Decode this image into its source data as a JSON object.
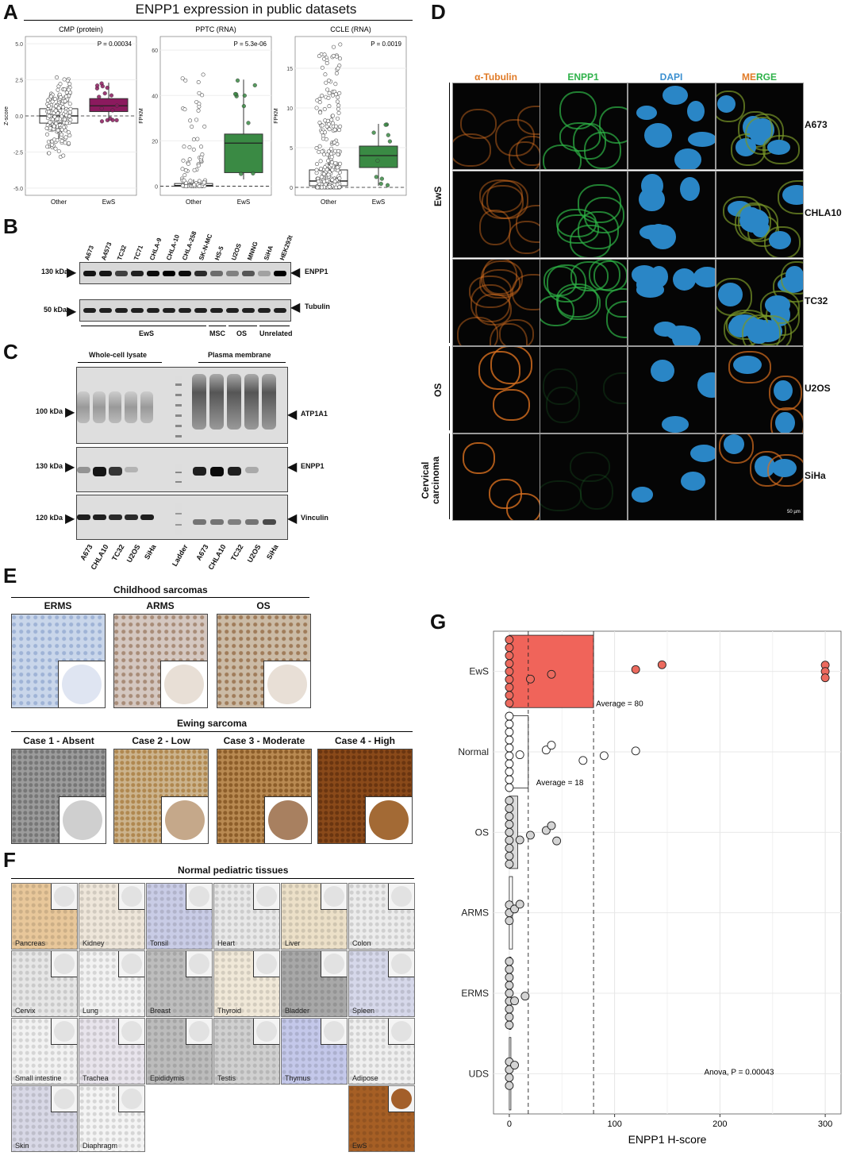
{
  "panels": {
    "A": "A",
    "B": "B",
    "C": "C",
    "D": "D",
    "E": "E",
    "F": "F",
    "G": "G"
  },
  "panelA": {
    "title": "ENPP1 expression in public datasets",
    "subplots": [
      {
        "title": "CMP (protein)",
        "pval": "P = 0.00034",
        "ylabel": "Z-score",
        "yticks": [
          "5.0",
          "2.5",
          "0.0",
          "-2.5",
          "-5.0"
        ],
        "xticks": [
          "Other",
          "EwS"
        ],
        "ew_color": "#8b1a5e"
      },
      {
        "title": "PPTC (RNA)",
        "pval": "P = 5.3e-06",
        "ylabel": "FPKM",
        "yticks": [
          "60",
          "40",
          "20",
          "0"
        ],
        "xticks": [
          "Other",
          "EwS"
        ],
        "ew_color": "#3a8a44"
      },
      {
        "title": "CCLE (RNA)",
        "pval": "P = 0.0019",
        "ylabel": "FPKM",
        "yticks": [
          "15",
          "10",
          "5",
          "0"
        ],
        "xticks": [
          "Other",
          "EwS"
        ],
        "ew_color": "#3a8a44"
      }
    ]
  },
  "panelB": {
    "lanes": [
      "A673",
      "A4573",
      "TC32",
      "TC71",
      "CHLA-9",
      "CHLA-10",
      "CHLA-258",
      "SK-N-MC",
      "HS-5",
      "U2OS",
      "MNNG",
      "SiHA",
      "HEK293t"
    ],
    "rows": [
      {
        "kda": "130 kDa",
        "label": "ENPP1"
      },
      {
        "kda": "50 kDa",
        "label": "Tubulin"
      }
    ],
    "groups": [
      "EwS",
      "MSC",
      "OS",
      "Unrelated"
    ]
  },
  "panelC": {
    "groups": [
      "Whole-cell lysate",
      "Plasma membrane"
    ],
    "rows": [
      {
        "kda": "100 kDa",
        "label": "ATP1A1"
      },
      {
        "kda": "130 kDa",
        "label": "ENPP1"
      },
      {
        "kda": "120 kDa",
        "label": "Vinculin"
      }
    ],
    "lanes": [
      "A673",
      "CHLA10",
      "TC32",
      "U2OS",
      "SiHa",
      "Ladder",
      "A673",
      "CHLA10",
      "TC32",
      "U2OS",
      "SiHa"
    ]
  },
  "panelD": {
    "channels": [
      "α-Tubulin",
      "ENPP1",
      "DAPI",
      "MERGE"
    ],
    "channel_colors": [
      "#e07a26",
      "#2fb24a",
      "#3a8fd0",
      "#e07a26"
    ],
    "merge_parts": [
      "M",
      "E",
      "R",
      "G",
      "E"
    ],
    "merge_colors": [
      "#e07a26",
      "#e07a26",
      "#2fb24a",
      "#2fb24a",
      "#2fb24a"
    ],
    "cells": [
      "A673",
      "CHLA10",
      "TC32",
      "U2OS",
      "SiHa"
    ],
    "groups": [
      "EwS",
      "OS",
      "Cervical carcinoma"
    ],
    "scale": "50 µm"
  },
  "panelE": {
    "header1": "Childhood sarcomas",
    "top": [
      "ERMS",
      "ARMS",
      "OS"
    ],
    "header2": "Ewing sarcoma",
    "bottom": [
      "Case 1 - Absent",
      "Case 2 - Low",
      "Case 3 - Moderate",
      "Case 4 - High"
    ]
  },
  "panelF": {
    "header": "Normal pediatric tissues",
    "tissues": [
      "Pancreas",
      "Kidney",
      "Tonsil",
      "Heart",
      "Liver",
      "Colon",
      "Cervix",
      "Lung",
      "Breast",
      "Thyroid",
      "Bladder",
      "Spleen",
      "Small intestine",
      "Trachea",
      "Epididymis",
      "Testis",
      "Thymus",
      "Adipose",
      "Skin",
      "Diaphragm",
      "EwS"
    ]
  },
  "chart_data": {
    "type": "scatter",
    "categories": [
      "EwS",
      "Normal",
      "OS",
      "ARMS",
      "ERMS",
      "UDS"
    ],
    "xlabel": "ENPP1 H-score",
    "xticks": [
      "0",
      "100",
      "200",
      "300"
    ],
    "xlim": [
      -15,
      315
    ],
    "bars": [
      80,
      18,
      8,
      3,
      1,
      0.5
    ],
    "average_lines": [
      18,
      80
    ],
    "average_labels": [
      "Average = 80",
      "Average = 18"
    ],
    "annotation": "Anova, P = 0.00043",
    "colors": {
      "EwS": "#ec6a5e",
      "other": "#d4d4d4",
      "bar_EwS": "#f0645a"
    },
    "points": {
      "EwS": [
        0,
        0,
        0,
        0,
        0,
        0,
        0,
        0,
        0,
        20,
        40,
        120,
        145,
        300,
        300,
        300
      ],
      "Normal": [
        0,
        0,
        0,
        0,
        0,
        0,
        0,
        0,
        0,
        0,
        10,
        35,
        40,
        70,
        90,
        120
      ],
      "OS": [
        0,
        0,
        0,
        0,
        0,
        0,
        0,
        0,
        0,
        10,
        20,
        35,
        40,
        45
      ],
      "ARMS": [
        0,
        0,
        0,
        5,
        10
      ],
      "ERMS": [
        0,
        0,
        0,
        0,
        0,
        0,
        0,
        0,
        0,
        5,
        15
      ],
      "UDS": [
        0,
        0,
        0,
        0,
        5
      ]
    }
  }
}
